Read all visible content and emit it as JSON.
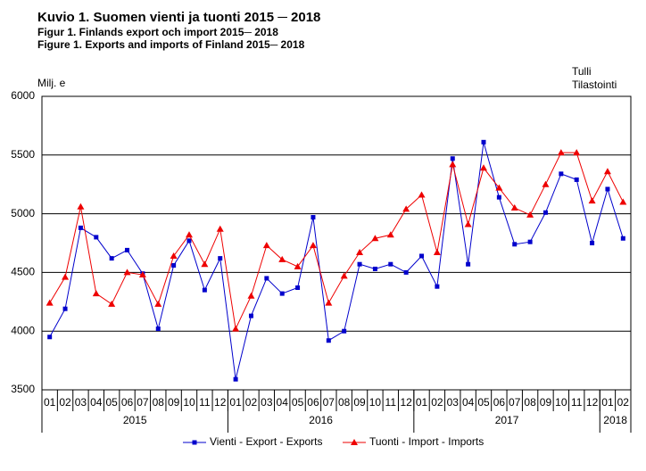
{
  "title": "Kuvio 1. Suomen vienti ja tuonti 2015 ─ 2018",
  "subtitle_sv": "Figur 1. Finlands export och import 2015─ 2018",
  "subtitle_en": "Figure 1. Exports and imports of Finland  2015─ 2018",
  "source": [
    "Tulli",
    "Tilastointi"
  ],
  "chart_data": {
    "type": "line",
    "y_label": "Milj. e",
    "categories": [
      "01",
      "02",
      "03",
      "04",
      "05",
      "06",
      "07",
      "08",
      "09",
      "10",
      "11",
      "12",
      "01",
      "02",
      "03",
      "04",
      "05",
      "06",
      "07",
      "08",
      "09",
      "10",
      "11",
      "12",
      "01",
      "02",
      "03",
      "04",
      "05",
      "06",
      "07",
      "08",
      "09",
      "10",
      "11",
      "12",
      "01",
      "02"
    ],
    "year_groups": [
      {
        "label": "2015",
        "months": 12
      },
      {
        "label": "2016",
        "months": 12
      },
      {
        "label": "2017",
        "months": 12
      },
      {
        "label": "2018",
        "months": 2
      }
    ],
    "ylim": [
      3500,
      6000
    ],
    "yticks": [
      3500,
      4000,
      4500,
      5000,
      5500,
      6000
    ],
    "grid": true,
    "series": [
      {
        "name": "Vienti - Export - Exports",
        "color": "#0000cc",
        "marker": "square",
        "values": [
          3950,
          4190,
          4880,
          4800,
          4620,
          4690,
          4490,
          4020,
          4560,
          4770,
          4350,
          4620,
          3590,
          4130,
          4450,
          4320,
          4370,
          4970,
          3920,
          4000,
          4570,
          4530,
          4570,
          4500,
          4640,
          4380,
          5470,
          4570,
          5610,
          5140,
          4740,
          4760,
          5010,
          5340,
          5290,
          4750,
          5210,
          4790
        ]
      },
      {
        "name": "Tuonti - Import - Imports",
        "color": "#ee0000",
        "marker": "triangle",
        "values": [
          4240,
          4460,
          5060,
          4320,
          4230,
          4500,
          4480,
          4230,
          4640,
          4820,
          4570,
          4870,
          4020,
          4300,
          4730,
          4610,
          4550,
          4730,
          4240,
          4470,
          4670,
          4790,
          4820,
          5040,
          5160,
          4670,
          5420,
          4910,
          5390,
          5220,
          5050,
          4990,
          5250,
          5520,
          5520,
          5110,
          5360,
          5100
        ]
      }
    ]
  }
}
